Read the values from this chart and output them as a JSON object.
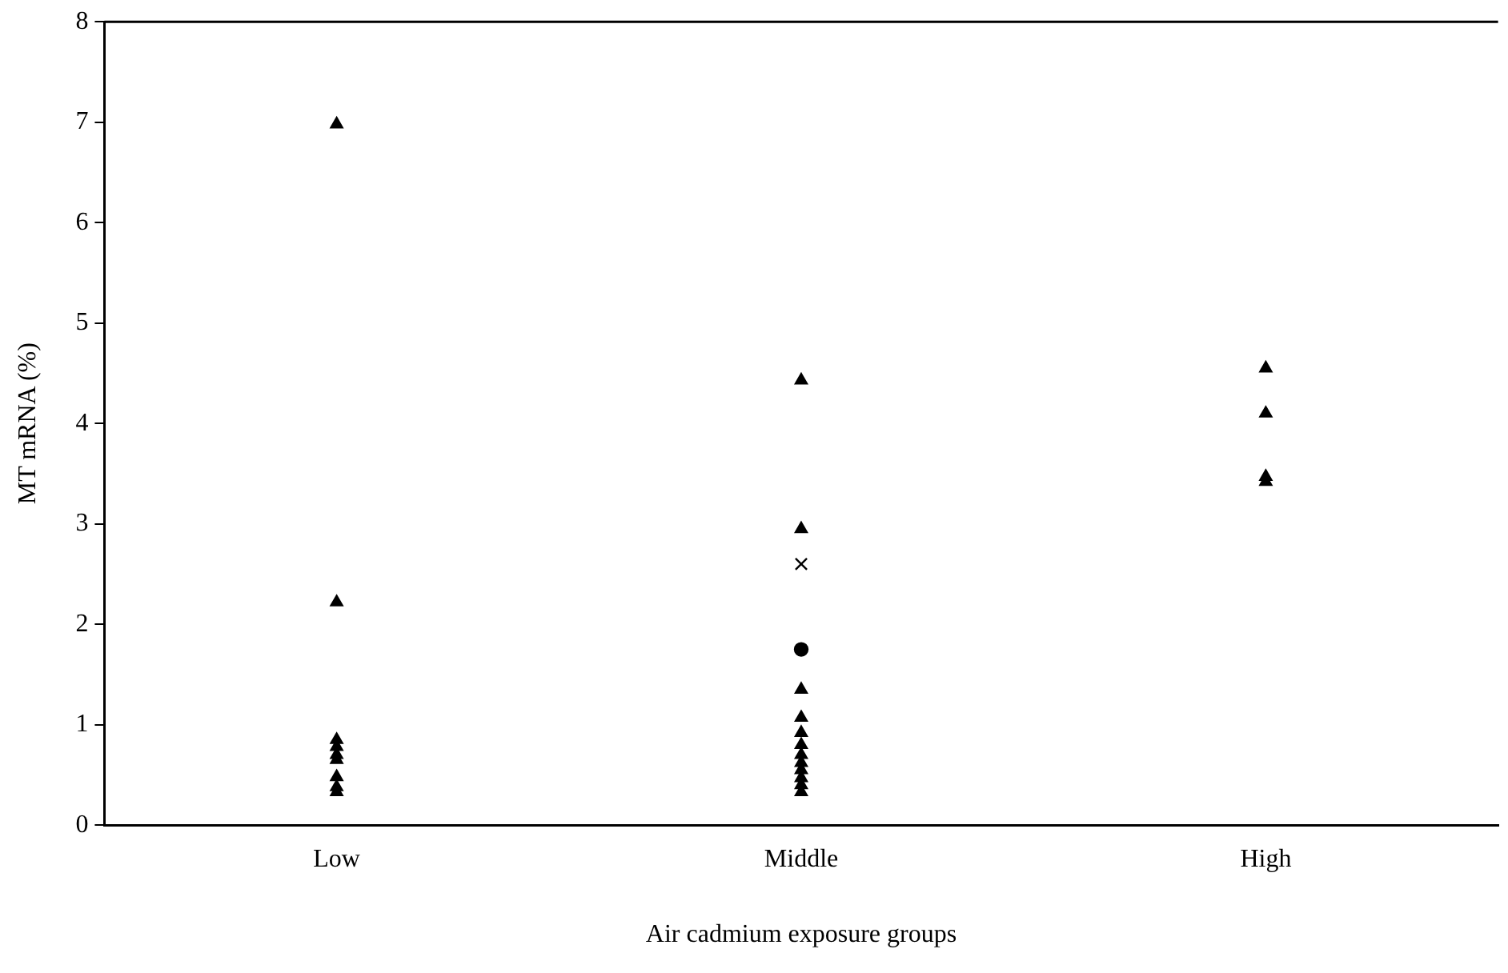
{
  "chart_data": {
    "type": "scatter",
    "xlabel": "Air cadmium exposure groups",
    "ylabel": "MT mRNA (%)",
    "categories": [
      "Low",
      "Middle",
      "High"
    ],
    "ylim": [
      0,
      8
    ],
    "yticks": [
      0,
      1,
      2,
      3,
      4,
      5,
      6,
      7,
      8
    ],
    "grid": false,
    "legend": false,
    "series": [
      {
        "color": "#000000",
        "marker": "triangle",
        "x": [
          "Low",
          "Low",
          "Low",
          "Low",
          "Low",
          "Low",
          "Low",
          "Low",
          "Low",
          "Middle",
          "Middle",
          "Middle",
          "Middle",
          "Middle",
          "Middle",
          "Middle",
          "Middle",
          "Middle",
          "Middle",
          "Middle",
          "Middle",
          "High",
          "High",
          "High",
          "High"
        ],
        "values": [
          6.98,
          2.22,
          0.85,
          0.78,
          0.7,
          0.65,
          0.48,
          0.38,
          0.33,
          4.43,
          2.95,
          1.35,
          1.07,
          0.92,
          0.8,
          0.7,
          0.62,
          0.55,
          0.47,
          0.4,
          0.33,
          4.55,
          4.1,
          3.47,
          3.42
        ]
      },
      {
        "color": "#000000",
        "marker": "cross",
        "x": [
          "Middle"
        ],
        "values": [
          2.6
        ]
      },
      {
        "color": "#000000",
        "marker": "circle",
        "x": [
          "Middle"
        ],
        "values": [
          1.75
        ]
      }
    ]
  }
}
